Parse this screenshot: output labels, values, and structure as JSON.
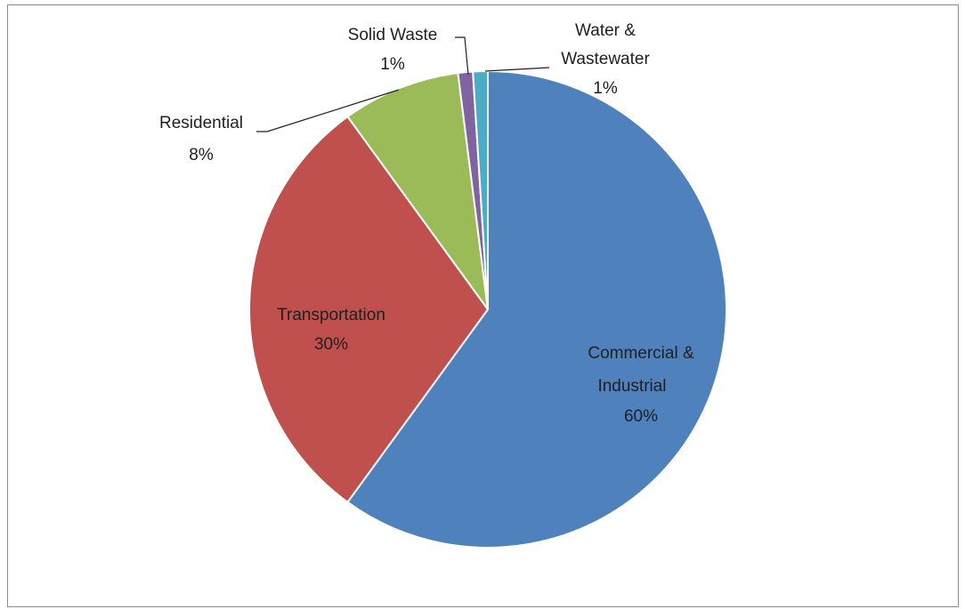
{
  "chart_data": {
    "type": "pie",
    "title": "",
    "categories": [
      "Commercial & Industrial",
      "Transportation",
      "Residential",
      "Solid Waste",
      "Water & Wastewater"
    ],
    "values": [
      60,
      30,
      8,
      1,
      1
    ],
    "value_labels": [
      "60%",
      "30%",
      "8%",
      "1%",
      "1%"
    ],
    "start_angle_deg": 0,
    "direction": "clockwise",
    "colors": [
      "#4F81BD",
      "#C0504D",
      "#9BBB59",
      "#8064A2",
      "#4BACC6"
    ],
    "legend": "none",
    "slice_border_color": "#ffffff"
  }
}
